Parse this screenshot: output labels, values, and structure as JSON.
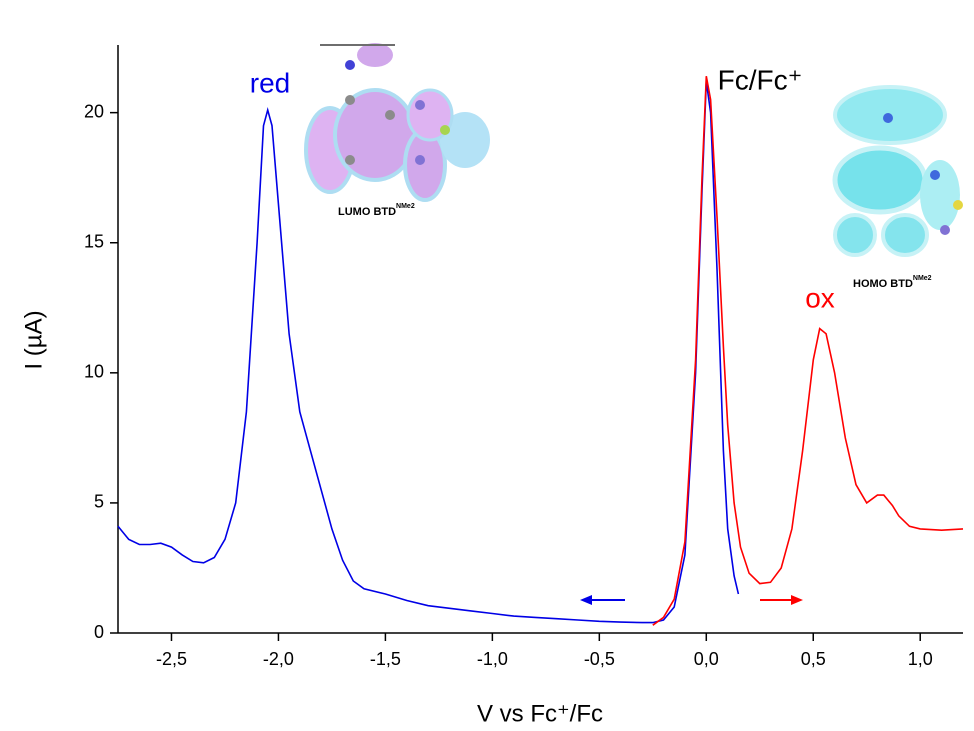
{
  "chart_data": {
    "type": "line",
    "xlabel": "V vs Fc⁺/Fc",
    "ylabel": "I (µA)",
    "xlim": [
      -2.75,
      1.2
    ],
    "ylim": [
      0,
      22.6
    ],
    "xticks": [
      {
        "value": -2.5,
        "label": "-2,5"
      },
      {
        "value": -2.0,
        "label": "-2,0"
      },
      {
        "value": -1.5,
        "label": "-1,5"
      },
      {
        "value": -1.0,
        "label": "-1,0"
      },
      {
        "value": -0.5,
        "label": "-0,5"
      },
      {
        "value": 0.0,
        "label": "0,0"
      },
      {
        "value": 0.5,
        "label": "0,5"
      },
      {
        "value": 1.0,
        "label": "1,0"
      }
    ],
    "yticks": [
      0,
      5,
      10,
      15,
      20
    ],
    "series": [
      {
        "color": "#0000e6",
        "x": [
          -2.75,
          -2.7,
          -2.65,
          -2.6,
          -2.55,
          -2.5,
          -2.45,
          -2.4,
          -2.35,
          -2.3,
          -2.25,
          -2.2,
          -2.15,
          -2.1,
          -2.07,
          -2.05,
          -2.03,
          -2.0,
          -1.95,
          -1.9,
          -1.85,
          -1.8,
          -1.75,
          -1.7,
          -1.65,
          -1.6,
          -1.5,
          -1.4,
          -1.3,
          -1.2,
          -1.1,
          -1.0,
          -0.9,
          -0.8,
          -0.7,
          -0.6,
          -0.5,
          -0.4,
          -0.3,
          -0.25,
          -0.2,
          -0.15,
          -0.1,
          -0.05,
          -0.02,
          0.0,
          0.02,
          0.05,
          0.08,
          0.1,
          0.13,
          0.15
        ],
        "values": [
          4.1,
          3.6,
          3.4,
          3.4,
          3.45,
          3.3,
          3.0,
          2.75,
          2.7,
          2.9,
          3.6,
          5.0,
          8.5,
          15.0,
          19.5,
          20.1,
          19.5,
          16.5,
          11.5,
          8.5,
          7.0,
          5.5,
          4.0,
          2.8,
          2.0,
          1.7,
          1.5,
          1.25,
          1.05,
          0.95,
          0.85,
          0.75,
          0.65,
          0.6,
          0.55,
          0.5,
          0.45,
          0.42,
          0.4,
          0.4,
          0.5,
          1.0,
          3.0,
          10.0,
          17.0,
          21.2,
          20.0,
          14.0,
          7.0,
          4.0,
          2.2,
          1.5
        ]
      },
      {
        "color": "#ff0000",
        "x": [
          -0.25,
          -0.2,
          -0.15,
          -0.1,
          -0.05,
          -0.02,
          0.0,
          0.02,
          0.05,
          0.08,
          0.1,
          0.13,
          0.16,
          0.2,
          0.25,
          0.3,
          0.35,
          0.4,
          0.45,
          0.5,
          0.53,
          0.56,
          0.6,
          0.65,
          0.7,
          0.75,
          0.8,
          0.83,
          0.87,
          0.9,
          0.95,
          1.0,
          1.1,
          1.2
        ],
        "values": [
          0.3,
          0.6,
          1.3,
          3.5,
          10.5,
          17.5,
          21.4,
          20.5,
          16.0,
          11.0,
          8.0,
          5.0,
          3.3,
          2.3,
          1.9,
          1.95,
          2.5,
          4.0,
          7.0,
          10.5,
          11.7,
          11.5,
          10.0,
          7.5,
          5.7,
          5.0,
          5.3,
          5.3,
          4.9,
          4.5,
          4.1,
          4.0,
          3.95,
          4.0
        ]
      }
    ],
    "annotations": [
      {
        "text": "red",
        "color": "#0000e6"
      },
      {
        "text": "Fc/Fc⁺",
        "color": "#000000"
      },
      {
        "text": "ox",
        "color": "#ff0000"
      }
    ],
    "insets": [
      {
        "text": "LUMO BTD",
        "sup": "NMe2"
      },
      {
        "text": "HOMO BTD",
        "sup": "NMe2"
      }
    ]
  }
}
